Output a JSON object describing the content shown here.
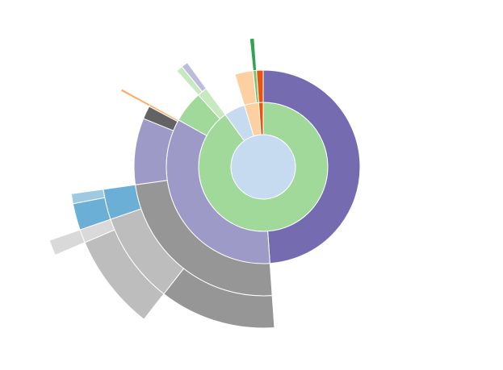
{
  "chart_data": {
    "type": "sunburst",
    "root": {
      "color": "#c6dbef",
      "children": [
        {
          "color": "#a1d99b",
          "children": [
            {
              "color": "#756bb1",
              "value": 176
            },
            {
              "color": "#9e9ac8",
              "children": [
                {
                  "color": "#969696",
                  "children": [
                    {
                      "color": "#969696",
                      "value": 42
                    },
                    {
                      "color": "#bdbdbd",
                      "children": [
                        {
                          "color": "#bdbdbd",
                          "value": 29
                        },
                        {
                          "color": "#d9d9d9",
                          "children": [
                            {
                              "color": "#d9d9d9",
                              "value": 4
                            }
                          ]
                        }
                      ]
                    },
                    {
                      "color": "#6baed6",
                      "children": [
                        {
                          "color": "#6baed6",
                          "value": 8
                        },
                        {
                          "color": "#9ecae1",
                          "value": 3
                        }
                      ]
                    }
                  ]
                },
                {
                  "color": "#9e9ac8",
                  "value": 30
                },
                {
                  "color": "#636363",
                  "value": 6
                },
                {
                  "color": "#fdae6b",
                  "children": [
                    {
                      "color": "#fdae6b",
                      "value": 1
                    }
                  ]
                }
              ]
            },
            {
              "color": "#a1d99b",
              "value": 19
            },
            {
              "color": "#c7e9c0",
              "children": [
                {
                  "color": "#c7e9c0",
                  "value": 3
                },
                {
                  "color": "#bcbddc",
                  "value": 3
                }
              ]
            }
          ]
        },
        {
          "color": "#c6dbef",
          "value": 19
        },
        {
          "color": "#fdd0a2",
          "children": [
            {
              "color": "#fdd0a2",
              "value": 11
            },
            {
              "color": "#74c476",
              "children": [
                {
                  "color": "#31a354",
                  "value": 2
                }
              ]
            }
          ]
        },
        {
          "color": "#e6550d",
          "children": [
            {
              "color": "#e6550d",
              "value": 4
            }
          ]
        }
      ]
    }
  }
}
